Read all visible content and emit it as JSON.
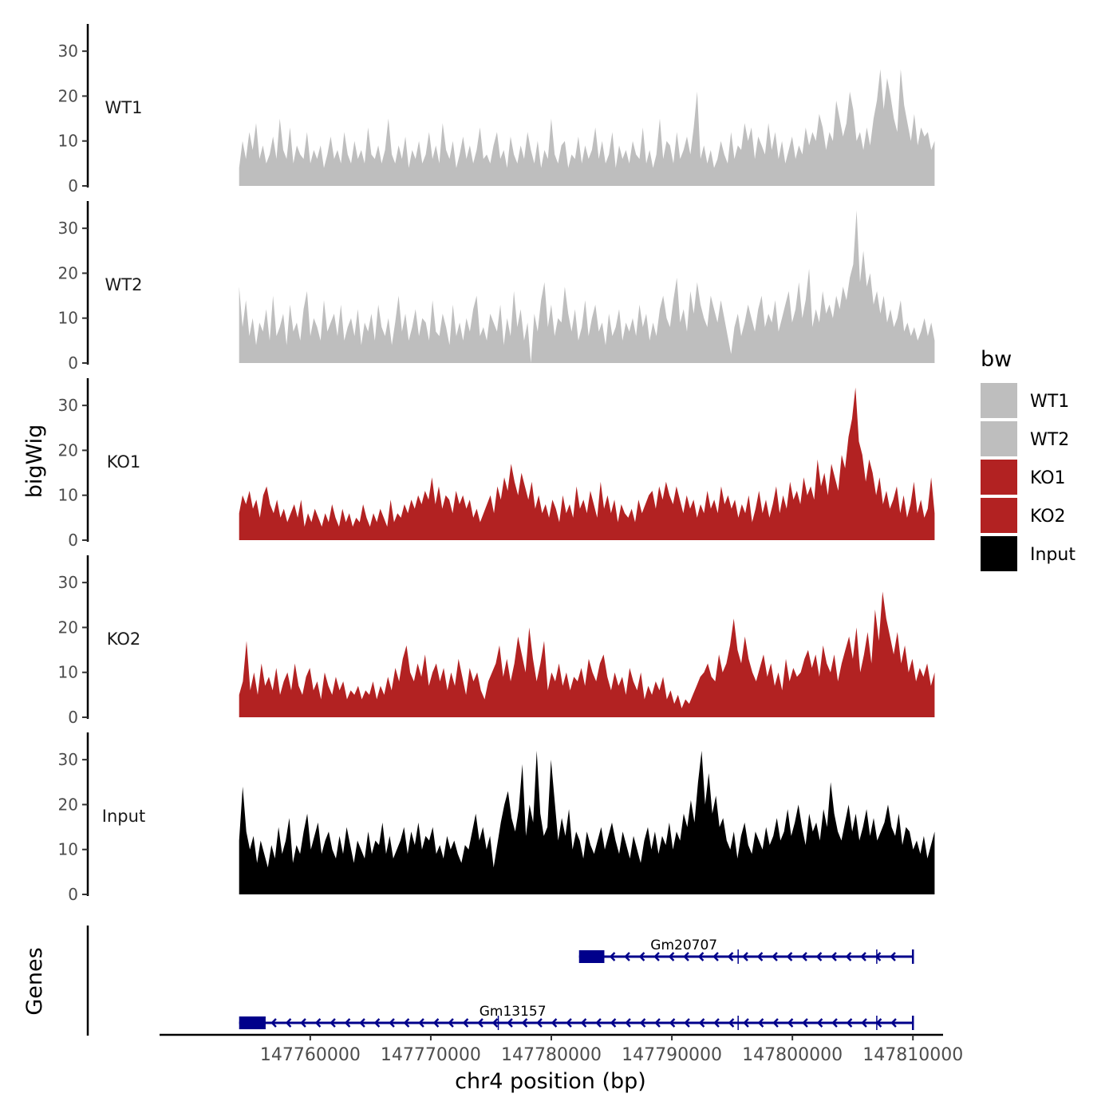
{
  "chart_data": {
    "type": "area",
    "ylabel": "bigWig",
    "genes_label": "Genes",
    "xlabel": "chr4 position (bp)",
    "xlim": [
      147747500,
      147812500
    ],
    "x_range": [
      147754100,
      147811800
    ],
    "yticks": [
      0,
      10,
      20,
      30
    ],
    "ylim": [
      0,
      35
    ],
    "xticks": [
      147760000,
      147770000,
      147780000,
      147790000,
      147800000,
      147810000
    ],
    "xtick_labels": [
      "147760000",
      "147770000",
      "147780000",
      "147790000",
      "147800000",
      "147810000"
    ],
    "legend": {
      "title": "bw",
      "position": "right",
      "entries": [
        {
          "label": "WT1",
          "color": "#bebebe"
        },
        {
          "label": "WT2",
          "color": "#bebebe"
        },
        {
          "label": "KO1",
          "color": "#b22222"
        },
        {
          "label": "KO2",
          "color": "#b22222"
        },
        {
          "label": "Input",
          "color": "#000000"
        }
      ]
    },
    "tracks": [
      {
        "name": "WT1",
        "label": "WT1",
        "color": "#bebebe",
        "values": [
          4,
          10,
          6,
          12,
          8,
          14,
          6,
          9,
          5,
          7,
          11,
          6,
          15,
          8,
          6,
          13,
          5,
          9,
          7,
          6,
          12,
          5,
          8,
          6,
          9,
          4,
          7,
          11,
          6,
          8,
          5,
          12,
          7,
          5,
          10,
          6,
          8,
          5,
          13,
          7,
          6,
          9,
          5,
          8,
          15,
          7,
          5,
          9,
          6,
          11,
          4,
          8,
          6,
          10,
          5,
          7,
          12,
          6,
          9,
          5,
          14,
          8,
          6,
          10,
          4,
          7,
          11,
          6,
          9,
          5,
          8,
          13,
          6,
          7,
          5,
          9,
          12,
          6,
          8,
          4,
          11,
          7,
          5,
          9,
          6,
          12,
          8,
          5,
          10,
          4,
          8,
          6,
          15,
          7,
          5,
          9,
          10,
          4,
          7,
          6,
          11,
          5,
          9,
          6,
          8,
          13,
          6,
          10,
          5,
          7,
          12,
          4,
          9,
          6,
          8,
          5,
          10,
          7,
          6,
          13,
          5,
          8,
          4,
          7,
          15,
          6,
          10,
          9,
          5,
          12,
          6,
          8,
          11,
          7,
          13,
          21,
          6,
          9,
          5,
          8,
          4,
          6,
          10,
          7,
          5,
          12,
          6,
          9,
          8,
          14,
          10,
          13,
          6,
          11,
          9,
          7,
          14,
          8,
          12,
          6,
          10,
          5,
          8,
          11,
          6,
          9,
          7,
          13,
          9,
          12,
          10,
          16,
          13,
          8,
          12,
          10,
          19,
          15,
          11,
          14,
          21,
          17,
          10,
          12,
          8,
          13,
          9,
          15,
          19,
          26,
          17,
          24,
          20,
          15,
          12,
          26,
          18,
          14,
          10,
          16,
          9,
          13,
          11,
          12,
          8,
          10
        ]
      },
      {
        "name": "WT2",
        "label": "WT2",
        "color": "#bebebe",
        "values": [
          17,
          8,
          14,
          6,
          10,
          4,
          9,
          7,
          12,
          5,
          15,
          6,
          8,
          11,
          4,
          13,
          7,
          9,
          5,
          12,
          16,
          6,
          10,
          8,
          5,
          14,
          7,
          9,
          11,
          6,
          13,
          5,
          8,
          10,
          6,
          12,
          4,
          9,
          7,
          11,
          5,
          13,
          8,
          6,
          10,
          4,
          9,
          15,
          7,
          11,
          5,
          8,
          12,
          6,
          10,
          9,
          5,
          14,
          7,
          6,
          11,
          8,
          4,
          13,
          6,
          9,
          5,
          10,
          7,
          12,
          15,
          6,
          8,
          5,
          11,
          9,
          7,
          13,
          4,
          10,
          6,
          16,
          8,
          12,
          5,
          9,
          0,
          11,
          7,
          14,
          18,
          8,
          13,
          6,
          10,
          9,
          17,
          11,
          7,
          12,
          5,
          8,
          14,
          6,
          10,
          13,
          7,
          9,
          4,
          11,
          6,
          8,
          12,
          5,
          9,
          7,
          10,
          6,
          13,
          8,
          11,
          5,
          9,
          6,
          12,
          15,
          10,
          8,
          14,
          19,
          9,
          12,
          7,
          16,
          11,
          18,
          13,
          10,
          8,
          15,
          12,
          9,
          14,
          10,
          6,
          2,
          8,
          11,
          6,
          9,
          13,
          10,
          7,
          12,
          15,
          8,
          11,
          9,
          14,
          7,
          10,
          13,
          16,
          9,
          12,
          18,
          10,
          14,
          21,
          8,
          12,
          9,
          16,
          11,
          13,
          10,
          15,
          12,
          17,
          14,
          19,
          22,
          34,
          18,
          25,
          17,
          20,
          13,
          16,
          11,
          15,
          9,
          12,
          8,
          10,
          14,
          7,
          9,
          6,
          8,
          5,
          7,
          10,
          6,
          9,
          5
        ]
      },
      {
        "name": "KO1",
        "label": "KO1",
        "color": "#b22222",
        "values": [
          6,
          10,
          8,
          11,
          7,
          9,
          5,
          10,
          12,
          8,
          6,
          9,
          5,
          7,
          4,
          6,
          8,
          5,
          9,
          3,
          6,
          4,
          7,
          5,
          3,
          6,
          4,
          8,
          5,
          3,
          7,
          4,
          6,
          3,
          5,
          4,
          8,
          5,
          3,
          6,
          4,
          7,
          5,
          3,
          9,
          4,
          6,
          5,
          8,
          6,
          9,
          7,
          10,
          8,
          11,
          9,
          14,
          8,
          12,
          7,
          10,
          9,
          6,
          11,
          8,
          10,
          7,
          9,
          5,
          7,
          4,
          6,
          8,
          10,
          6,
          12,
          9,
          14,
          11,
          17,
          13,
          10,
          15,
          12,
          9,
          13,
          7,
          10,
          6,
          8,
          5,
          9,
          7,
          4,
          10,
          6,
          8,
          5,
          12,
          7,
          9,
          6,
          11,
          8,
          5,
          13,
          7,
          10,
          6,
          9,
          4,
          8,
          6,
          5,
          7,
          4,
          9,
          6,
          8,
          10,
          11,
          7,
          12,
          9,
          13,
          10,
          8,
          12,
          9,
          6,
          10,
          7,
          9,
          5,
          8,
          6,
          11,
          7,
          9,
          6,
          12,
          8,
          10,
          7,
          9,
          5,
          8,
          6,
          10,
          4,
          7,
          11,
          6,
          9,
          5,
          8,
          12,
          6,
          10,
          7,
          13,
          9,
          11,
          8,
          14,
          10,
          12,
          9,
          18,
          12,
          15,
          10,
          17,
          14,
          11,
          19,
          16,
          23,
          27,
          34,
          22,
          19,
          13,
          18,
          15,
          10,
          14,
          8,
          11,
          7,
          9,
          12,
          6,
          10,
          5,
          8,
          13,
          6,
          9,
          5,
          7,
          14,
          6
        ]
      },
      {
        "name": "KO2",
        "label": "KO2",
        "color": "#b22222",
        "values": [
          5,
          8,
          17,
          6,
          10,
          5,
          12,
          7,
          9,
          6,
          11,
          5,
          8,
          10,
          6,
          12,
          7,
          5,
          9,
          11,
          6,
          8,
          4,
          10,
          7,
          5,
          9,
          6,
          8,
          4,
          6,
          5,
          7,
          4,
          6,
          5,
          8,
          4,
          7,
          5,
          9,
          6,
          11,
          8,
          13,
          16,
          10,
          8,
          12,
          9,
          14,
          7,
          10,
          12,
          8,
          11,
          6,
          10,
          7,
          13,
          9,
          5,
          11,
          8,
          10,
          6,
          4,
          8,
          10,
          12,
          16,
          9,
          13,
          8,
          12,
          18,
          14,
          10,
          20,
          13,
          8,
          12,
          17,
          6,
          10,
          8,
          12,
          7,
          10,
          6,
          9,
          8,
          11,
          7,
          13,
          10,
          8,
          12,
          14,
          9,
          6,
          10,
          7,
          9,
          5,
          11,
          8,
          6,
          10,
          4,
          7,
          5,
          8,
          6,
          9,
          4,
          6,
          3,
          5,
          2,
          4,
          3,
          5,
          7,
          9,
          10,
          12,
          9,
          8,
          14,
          10,
          12,
          16,
          22,
          15,
          12,
          18,
          13,
          10,
          8,
          11,
          14,
          9,
          12,
          7,
          10,
          6,
          13,
          8,
          11,
          9,
          10,
          13,
          15,
          11,
          14,
          9,
          16,
          12,
          10,
          14,
          8,
          12,
          15,
          18,
          13,
          20,
          10,
          14,
          19,
          12,
          24,
          17,
          28,
          22,
          18,
          14,
          19,
          12,
          16,
          10,
          13,
          8,
          11,
          9,
          12,
          7,
          10
        ]
      },
      {
        "name": "Input",
        "label": "Input",
        "color": "#000000",
        "values": [
          12,
          24,
          14,
          10,
          13,
          7,
          12,
          9,
          6,
          11,
          8,
          15,
          9,
          12,
          17,
          7,
          11,
          9,
          14,
          18,
          10,
          13,
          16,
          9,
          12,
          14,
          10,
          8,
          13,
          9,
          15,
          11,
          7,
          12,
          10,
          8,
          14,
          9,
          12,
          11,
          16,
          9,
          13,
          8,
          10,
          12,
          15,
          9,
          14,
          11,
          16,
          10,
          13,
          12,
          15,
          9,
          11,
          8,
          13,
          10,
          12,
          9,
          7,
          11,
          10,
          14,
          18,
          12,
          15,
          10,
          13,
          6,
          11,
          16,
          20,
          23,
          17,
          14,
          19,
          29,
          13,
          20,
          16,
          32,
          18,
          13,
          15,
          30,
          21,
          12,
          17,
          13,
          19,
          10,
          14,
          12,
          8,
          14,
          11,
          9,
          12,
          15,
          10,
          13,
          16,
          12,
          9,
          14,
          11,
          8,
          13,
          10,
          7,
          12,
          15,
          10,
          14,
          9,
          13,
          11,
          16,
          10,
          14,
          12,
          18,
          15,
          21,
          16,
          25,
          32,
          20,
          27,
          18,
          22,
          15,
          17,
          12,
          10,
          14,
          8,
          13,
          16,
          11,
          9,
          14,
          12,
          10,
          15,
          11,
          13,
          17,
          12,
          14,
          19,
          13,
          16,
          20,
          15,
          11,
          18,
          14,
          16,
          12,
          19,
          15,
          25,
          18,
          14,
          12,
          16,
          20,
          14,
          18,
          12,
          15,
          19,
          13,
          17,
          12,
          14,
          16,
          20,
          15,
          13,
          18,
          11,
          15,
          14,
          10,
          12,
          9,
          13,
          8,
          11,
          14
        ]
      }
    ],
    "genes": [
      {
        "name": "Gm20707",
        "start": 147782300,
        "end": 147810000,
        "exon_end": 147784400,
        "intron_marks": [
          147795500,
          147807000
        ],
        "strand": "-"
      },
      {
        "name": "Gm13157",
        "start": 147754100,
        "end": 147810000,
        "exon_end": 147756300,
        "intron_marks": [
          147775600,
          147795500,
          147807000
        ],
        "strand": "-"
      }
    ]
  }
}
